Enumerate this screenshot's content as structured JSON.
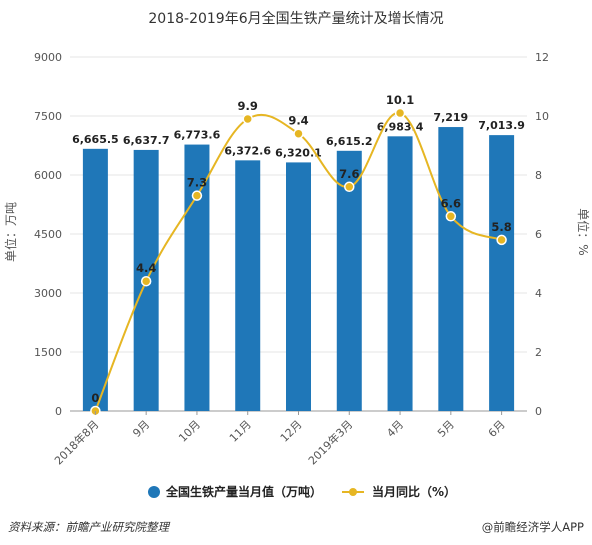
{
  "colors": {
    "bar": "#1f77b8",
    "line": "#e6b623",
    "grid": "#e4e4e4",
    "axis": "#999999"
  },
  "chart_data": {
    "type": "bar",
    "title": "2018-2019年6月全国生铁产量统计及增长情况",
    "categories": [
      "2018年8月",
      "9月",
      "10月",
      "11月",
      "12月",
      "2019年3月",
      "4月",
      "5月",
      "6月"
    ],
    "series": [
      {
        "name": "全国生铁产量当月值（万吨）",
        "type": "bar",
        "axis": "left",
        "values": [
          6665.5,
          6637.7,
          6773.6,
          6372.6,
          6320.1,
          6615.2,
          6983.4,
          7219,
          7013.9
        ],
        "labels": [
          "6,665.5",
          "6,637.7",
          "6,773.6",
          "6,372.6",
          "6,320.1",
          "6,615.2",
          "6,983.4",
          "7,219",
          "7,013.9"
        ]
      },
      {
        "name": "当月同比（%）",
        "type": "line",
        "axis": "right",
        "values": [
          0,
          4.4,
          7.3,
          9.9,
          9.4,
          7.6,
          10.1,
          6.6,
          5.8
        ],
        "labels": [
          "0",
          "4.4",
          "7.3",
          "9.9",
          "9.4",
          "7.6",
          "10.1",
          "6.6",
          "5.8"
        ]
      }
    ],
    "ylabel_left": "单位：万吨",
    "ylabel_right": "单位：%",
    "ylim_left": [
      0,
      9000
    ],
    "ylim_right": [
      0,
      12
    ],
    "yticks_left": [
      "0",
      "1500",
      "3000",
      "4500",
      "6000",
      "7500",
      "9000"
    ],
    "yticks_right": [
      "0",
      "2",
      "4",
      "6",
      "8",
      "10",
      "12"
    ],
    "grid": true,
    "legend": "bottom"
  },
  "footer": {
    "source": "资料来源：前瞻产业研究院整理",
    "brand": "@前瞻经济学人APP"
  }
}
